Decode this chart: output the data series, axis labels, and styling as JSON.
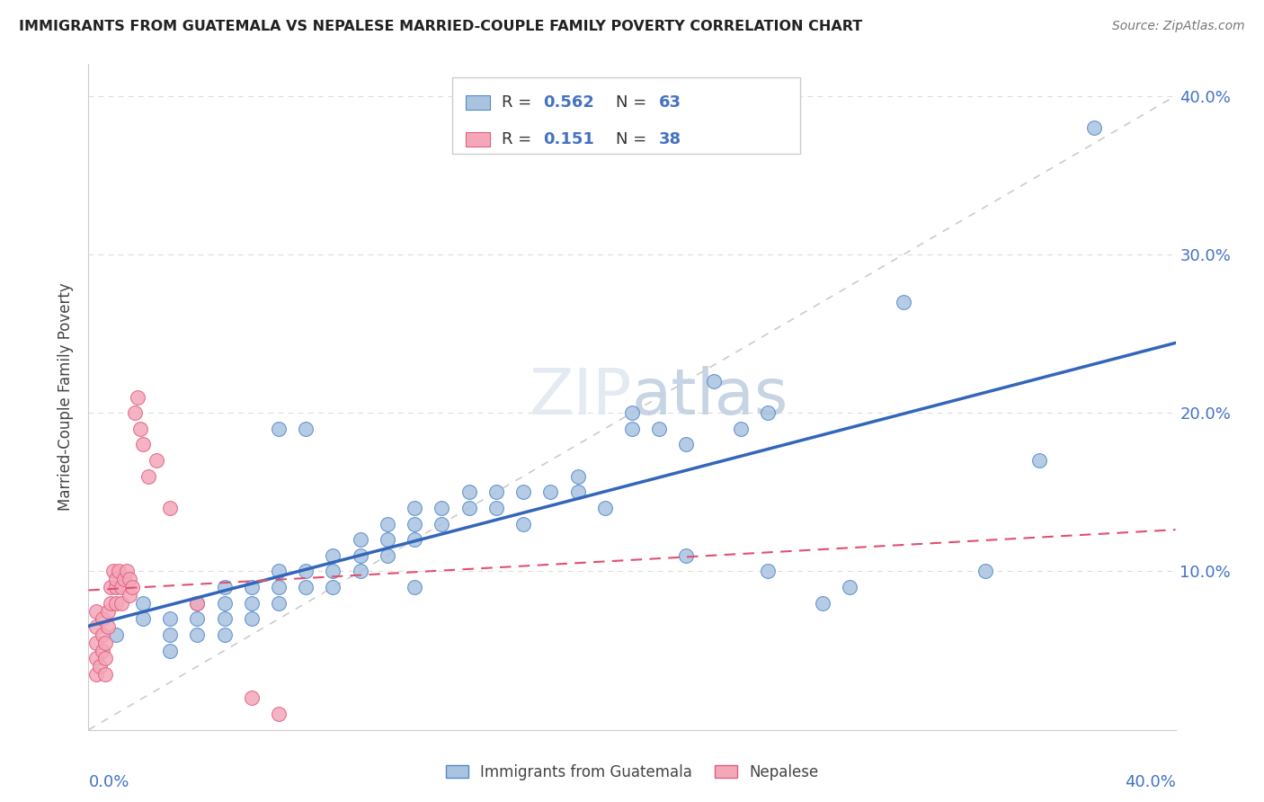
{
  "title": "IMMIGRANTS FROM GUATEMALA VS NEPALESE MARRIED-COUPLE FAMILY POVERTY CORRELATION CHART",
  "source": "Source: ZipAtlas.com",
  "ylabel": "Married-Couple Family Poverty",
  "legend_label1": "Immigrants from Guatemala",
  "legend_label2": "Nepalese",
  "R1": "0.562",
  "N1": "63",
  "R2": "0.151",
  "N2": "38",
  "watermark": "ZIPatlas",
  "blue_fill": "#A8C4E0",
  "pink_fill": "#F4A7B9",
  "blue_edge": "#5588CC",
  "pink_edge": "#E06080",
  "blue_line": "#3366BB",
  "pink_line": "#E05070",
  "ref_line": "#CCCCCC",
  "grid_color": "#DDDDDD",
  "axis_color": "#4472C4",
  "text_color": "#444444",
  "blue_scatter": [
    [
      0.01,
      0.06
    ],
    [
      0.02,
      0.07
    ],
    [
      0.02,
      0.08
    ],
    [
      0.03,
      0.05
    ],
    [
      0.03,
      0.06
    ],
    [
      0.03,
      0.07
    ],
    [
      0.04,
      0.06
    ],
    [
      0.04,
      0.07
    ],
    [
      0.04,
      0.08
    ],
    [
      0.05,
      0.06
    ],
    [
      0.05,
      0.07
    ],
    [
      0.05,
      0.08
    ],
    [
      0.05,
      0.09
    ],
    [
      0.06,
      0.07
    ],
    [
      0.06,
      0.08
    ],
    [
      0.06,
      0.09
    ],
    [
      0.07,
      0.08
    ],
    [
      0.07,
      0.09
    ],
    [
      0.07,
      0.1
    ],
    [
      0.07,
      0.19
    ],
    [
      0.08,
      0.09
    ],
    [
      0.08,
      0.1
    ],
    [
      0.08,
      0.19
    ],
    [
      0.09,
      0.09
    ],
    [
      0.09,
      0.1
    ],
    [
      0.09,
      0.11
    ],
    [
      0.1,
      0.1
    ],
    [
      0.1,
      0.11
    ],
    [
      0.1,
      0.12
    ],
    [
      0.11,
      0.11
    ],
    [
      0.11,
      0.12
    ],
    [
      0.11,
      0.13
    ],
    [
      0.12,
      0.12
    ],
    [
      0.12,
      0.13
    ],
    [
      0.12,
      0.14
    ],
    [
      0.12,
      0.09
    ],
    [
      0.13,
      0.13
    ],
    [
      0.13,
      0.14
    ],
    [
      0.14,
      0.14
    ],
    [
      0.14,
      0.15
    ],
    [
      0.15,
      0.14
    ],
    [
      0.15,
      0.15
    ],
    [
      0.16,
      0.13
    ],
    [
      0.16,
      0.15
    ],
    [
      0.17,
      0.15
    ],
    [
      0.18,
      0.15
    ],
    [
      0.18,
      0.16
    ],
    [
      0.19,
      0.14
    ],
    [
      0.2,
      0.19
    ],
    [
      0.2,
      0.2
    ],
    [
      0.21,
      0.19
    ],
    [
      0.22,
      0.18
    ],
    [
      0.22,
      0.11
    ],
    [
      0.23,
      0.22
    ],
    [
      0.24,
      0.19
    ],
    [
      0.25,
      0.2
    ],
    [
      0.25,
      0.1
    ],
    [
      0.27,
      0.08
    ],
    [
      0.28,
      0.09
    ],
    [
      0.3,
      0.27
    ],
    [
      0.33,
      0.1
    ],
    [
      0.35,
      0.17
    ],
    [
      0.37,
      0.38
    ]
  ],
  "pink_scatter": [
    [
      0.003,
      0.035
    ],
    [
      0.003,
      0.045
    ],
    [
      0.003,
      0.055
    ],
    [
      0.003,
      0.065
    ],
    [
      0.003,
      0.075
    ],
    [
      0.004,
      0.04
    ],
    [
      0.005,
      0.05
    ],
    [
      0.005,
      0.06
    ],
    [
      0.005,
      0.07
    ],
    [
      0.006,
      0.035
    ],
    [
      0.006,
      0.045
    ],
    [
      0.006,
      0.055
    ],
    [
      0.007,
      0.065
    ],
    [
      0.007,
      0.075
    ],
    [
      0.008,
      0.08
    ],
    [
      0.008,
      0.09
    ],
    [
      0.009,
      0.1
    ],
    [
      0.01,
      0.08
    ],
    [
      0.01,
      0.09
    ],
    [
      0.01,
      0.095
    ],
    [
      0.011,
      0.1
    ],
    [
      0.012,
      0.08
    ],
    [
      0.012,
      0.09
    ],
    [
      0.013,
      0.095
    ],
    [
      0.014,
      0.1
    ],
    [
      0.015,
      0.085
    ],
    [
      0.015,
      0.095
    ],
    [
      0.016,
      0.09
    ],
    [
      0.017,
      0.2
    ],
    [
      0.018,
      0.21
    ],
    [
      0.019,
      0.19
    ],
    [
      0.02,
      0.18
    ],
    [
      0.022,
      0.16
    ],
    [
      0.025,
      0.17
    ],
    [
      0.03,
      0.14
    ],
    [
      0.04,
      0.08
    ],
    [
      0.06,
      0.02
    ],
    [
      0.07,
      0.01
    ]
  ],
  "xlim": [
    0.0,
    0.4
  ],
  "ylim": [
    0.0,
    0.42
  ],
  "ytick_vals": [
    0.1,
    0.2,
    0.3,
    0.4
  ],
  "fig_bg": "#ffffff"
}
